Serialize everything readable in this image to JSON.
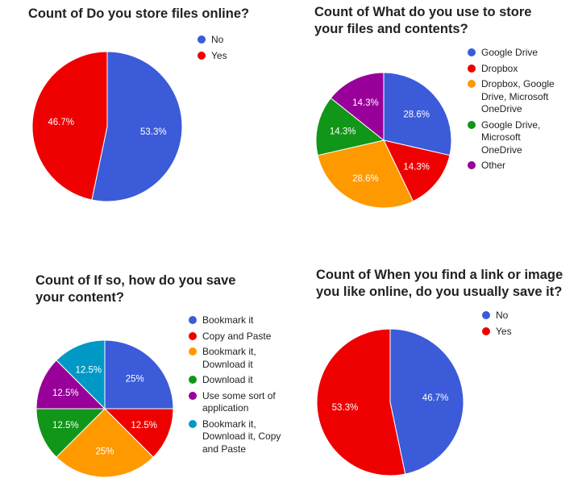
{
  "chart_data": [
    {
      "type": "pie",
      "title": "Count of Do you store files online?",
      "series": [
        {
          "label": "No",
          "value": 53.3,
          "color": "#3b5bd9"
        },
        {
          "label": "Yes",
          "value": 46.7,
          "color": "#ee0000"
        }
      ],
      "legend_position": "right"
    },
    {
      "type": "pie",
      "title": "Count of What do you use to store your files and contents?",
      "series": [
        {
          "label": "Google Drive",
          "value": 28.6,
          "color": "#3b5bd9"
        },
        {
          "label": "Dropbox",
          "value": 14.3,
          "color": "#ee0000"
        },
        {
          "label": "Dropbox, Google Drive, Microsoft OneDrive",
          "value": 28.6,
          "color": "#ff9900"
        },
        {
          "label": "Google Drive, Microsoft OneDrive",
          "value": 14.3,
          "color": "#109618"
        },
        {
          "label": "Other",
          "value": 14.3,
          "color": "#990099"
        }
      ],
      "legend_position": "right"
    },
    {
      "type": "pie",
      "title": "Count of If so, how do you save your content?",
      "series": [
        {
          "label": "Bookmark it",
          "value": 25,
          "color": "#3b5bd9"
        },
        {
          "label": "Copy and Paste",
          "value": 12.5,
          "color": "#ee0000"
        },
        {
          "label": "Bookmark it, Download it",
          "value": 25,
          "color": "#ff9900"
        },
        {
          "label": "Download it",
          "value": 12.5,
          "color": "#109618"
        },
        {
          "label": "Use some sort of application",
          "value": 12.5,
          "color": "#990099"
        },
        {
          "label": "Bookmark it, Download it, Copy and Paste",
          "value": 12.5,
          "color": "#0099c6"
        }
      ],
      "legend_position": "right"
    },
    {
      "type": "pie",
      "title": "Count of When you find a link or image you like online, do you usually save it?",
      "series": [
        {
          "label": "No",
          "value": 46.7,
          "color": "#3b5bd9"
        },
        {
          "label": "Yes",
          "value": 53.3,
          "color": "#ee0000"
        }
      ],
      "legend_position": "top-right"
    }
  ]
}
